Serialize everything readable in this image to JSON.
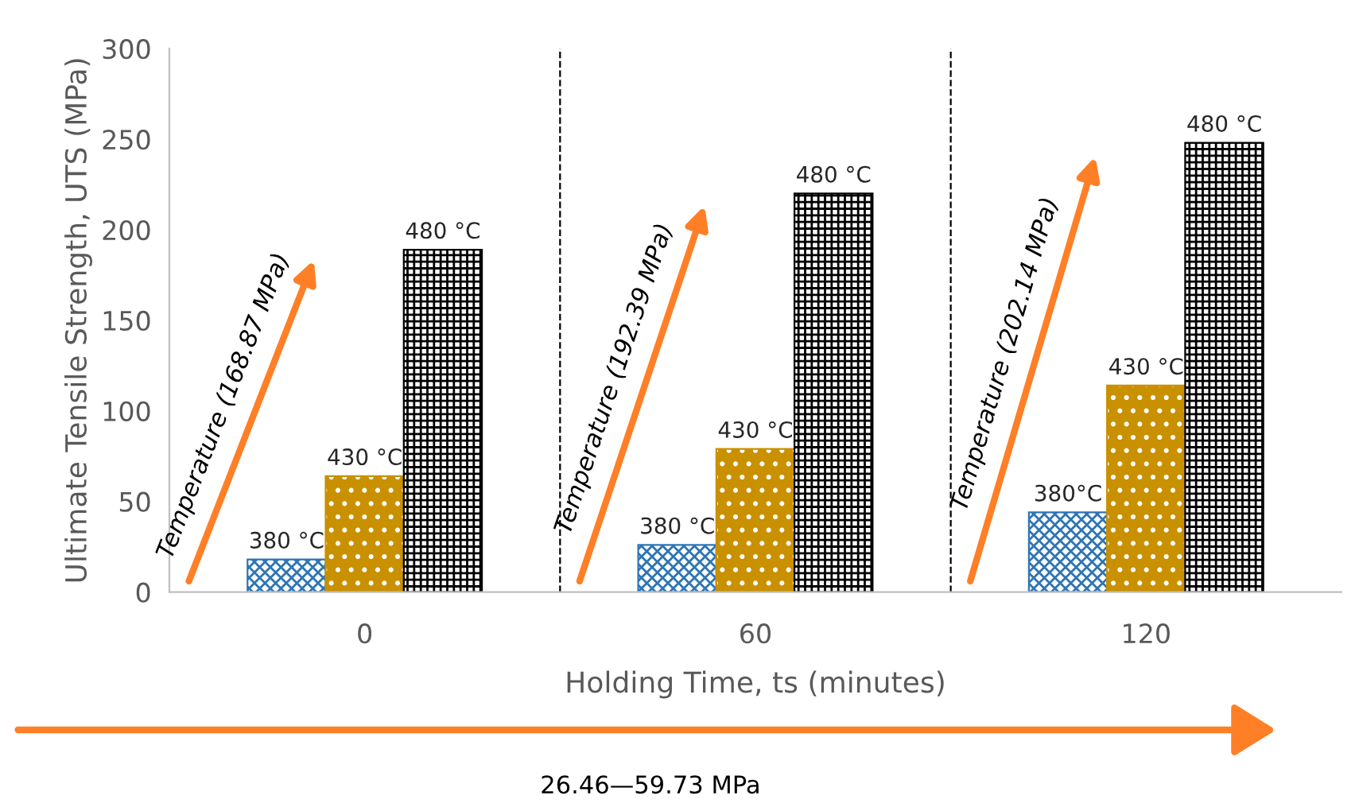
{
  "chart_data": {
    "type": "bar",
    "xlabel": "Holding Time, ts (minutes)",
    "ylabel": "Ultimate Tensile Strength, UTS (MPa)",
    "categories": [
      "0",
      "60",
      "120"
    ],
    "series": [
      {
        "color": "#2e75b6",
        "values": [
          18,
          26,
          44
        ]
      },
      {
        "color": "#c99000",
        "values": [
          64,
          79,
          114
        ]
      },
      {
        "color": "#000000",
        "values": [
          189,
          220,
          248
        ]
      }
    ],
    "ylim": [
      0,
      300
    ],
    "yticks": [
      0,
      50,
      100,
      150,
      200,
      250,
      300
    ],
    "grid": false,
    "legend": false,
    "annotations": [
      "380 °C",
      "430 °C",
      "480 °C",
      "380 °C",
      "430 °C",
      "480 °C",
      "380°C",
      "430 °C",
      "480 °C",
      "Temperature (168.87 MPa)",
      "Temperature (192.39 MPa)",
      "Temperature (202.14 MPa)",
      "26.46—59.73 MPa"
    ]
  }
}
